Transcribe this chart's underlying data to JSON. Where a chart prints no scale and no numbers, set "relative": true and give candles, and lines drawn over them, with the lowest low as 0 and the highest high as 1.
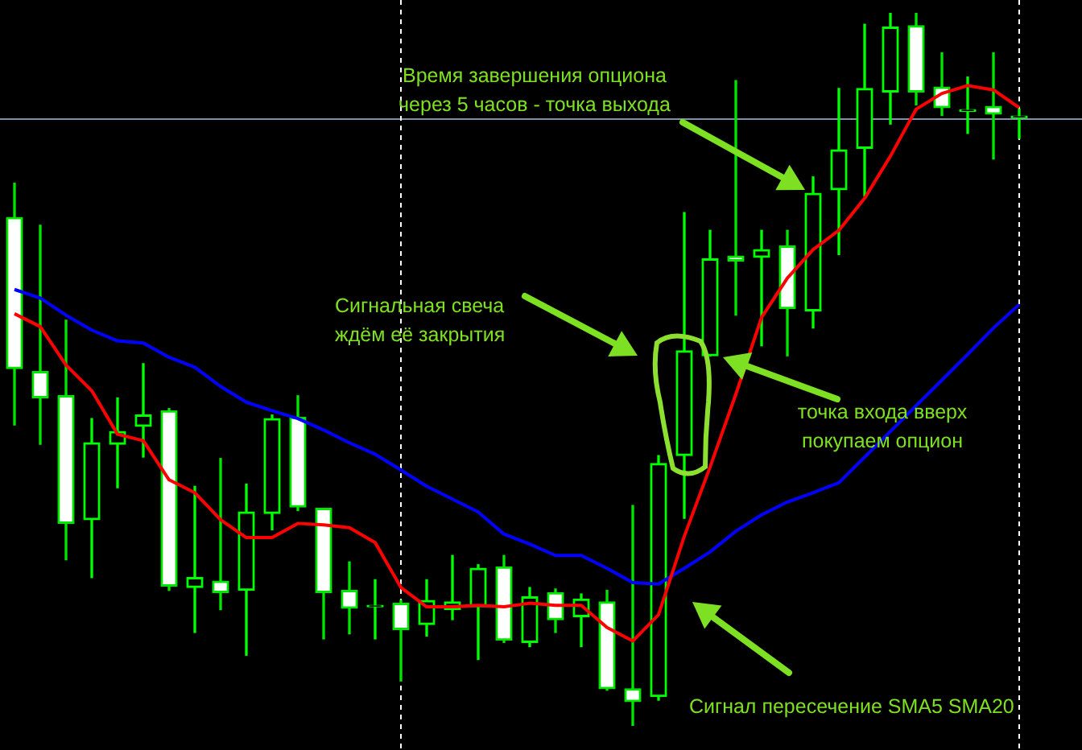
{
  "chart_data": {
    "type": "candlestick",
    "relative": true,
    "categories": [
      null,
      null,
      null,
      null,
      null,
      null,
      null,
      null,
      null,
      null,
      null,
      null,
      null,
      null,
      null,
      null,
      null,
      null,
      null,
      null,
      null,
      null,
      null,
      null,
      null,
      null,
      null,
      null,
      null,
      null,
      null,
      null,
      null,
      null,
      null,
      null,
      null,
      null,
      null,
      null
    ],
    "colors": [
      "#00e600",
      "#00e600",
      "#00e600",
      "#00ff00",
      "#00ff00",
      "#00ff00",
      "#00e600",
      "#00ff00",
      "#00e600",
      "#00ff00",
      "#00ff00",
      "#00e600",
      "#00e600",
      "#00e600",
      "#00ff00",
      "#00e600",
      "#00ff00",
      "#00ff00",
      "#00ff00",
      "#00e600",
      "#00ff00",
      "#00e600",
      "#00ff00",
      "#00e600",
      "#00e600",
      "#00ff00",
      "#00ff00",
      "#00ff00",
      "#00e600",
      "#00ff00",
      "#00e600",
      "#00ff00",
      "#00ff00",
      "#00ff00",
      "#00ff00",
      "#00e600",
      "#00e600",
      "#00ff00",
      "#00e600",
      "#00ff00"
    ],
    "ohlc": [
      [
        0.713,
        0.761,
        0.422,
        0.501
      ],
      [
        0.497,
        0.702,
        0.395,
        0.46
      ],
      [
        0.463,
        0.569,
        0.233,
        0.284
      ],
      [
        0.289,
        0.431,
        0.208,
        0.397
      ],
      [
        0.395,
        0.46,
        0.334,
        0.413
      ],
      [
        0.42,
        0.508,
        0.377,
        0.436
      ],
      [
        0.442,
        0.445,
        0.19,
        0.196
      ],
      [
        0.194,
        0.336,
        0.131,
        0.208
      ],
      [
        0.203,
        0.375,
        0.163,
        0.187
      ],
      [
        0.19,
        0.339,
        0.099,
        0.3
      ],
      [
        0.298,
        0.436,
        0.275,
        0.431
      ],
      [
        0.433,
        0.463,
        0.302,
        0.307
      ],
      [
        0.305,
        0.305,
        0.122,
        0.187
      ],
      [
        0.19,
        0.23,
        0.129,
        0.165
      ],
      [
        0.167,
        0.205,
        0.122,
        0.167
      ],
      [
        0.172,
        0.176,
        0.063,
        0.135
      ],
      [
        0.142,
        0.205,
        0.126,
        0.176
      ],
      [
        0.163,
        0.239,
        0.149,
        0.174
      ],
      [
        0.167,
        0.226,
        0.093,
        0.221
      ],
      [
        0.223,
        0.239,
        0.117,
        0.12
      ],
      [
        0.117,
        0.194,
        0.111,
        0.181
      ],
      [
        0.187,
        0.192,
        0.131,
        0.149
      ],
      [
        0.153,
        0.185,
        0.111,
        0.178
      ],
      [
        0.174,
        0.19,
        0.05,
        0.052
      ],
      [
        0.052,
        0.309,
        0,
        0.034
      ],
      [
        0.041,
        0.379,
        0.036,
        0.368
      ],
      [
        0.379,
        0.72,
        0.291,
        0.526
      ],
      [
        0.519,
        0.695,
        0.519,
        0.655
      ],
      [
        0.659,
        0.905,
        0.576,
        0.652
      ],
      [
        0.657,
        0.695,
        0.533,
        0.668
      ],
      [
        0.673,
        0.695,
        0.519,
        0.585
      ],
      [
        0.582,
        0.77,
        0.558,
        0.747
      ],
      [
        0.752,
        0.894,
        0.661,
        0.808
      ],
      [
        0.81,
        0.984,
        0.743,
        0.894
      ],
      [
        0.889,
        1,
        0.844,
        0.98
      ],
      [
        0.982,
        1,
        0.871,
        0.889
      ],
      [
        0.896,
        0.944,
        0.856,
        0.867
      ],
      [
        0.862,
        0.91,
        0.831,
        0.862
      ],
      [
        0.869,
        0.944,
        0.795,
        0.858
      ],
      [
        0.853,
        0.865,
        0.824,
        0.853
      ]
    ],
    "series": [
      {
        "type": "line",
        "color": "#ff0000",
        "values": [
          0.578,
          0.56,
          0.506,
          0.47,
          0.409,
          0.4,
          0.345,
          0.327,
          0.289,
          0.264,
          0.264,
          0.284,
          0.282,
          0.278,
          0.257,
          0.194,
          0.167,
          0.167,
          0.169,
          0.167,
          0.172,
          0.169,
          0.169,
          0.138,
          0.119,
          0.156,
          0.266,
          0.363,
          0.465,
          0.573,
          0.628,
          0.668,
          0.695,
          0.74,
          0.799,
          0.865,
          0.887,
          0.898,
          0.892,
          0.867
        ]
      },
      {
        "type": "line",
        "color": "#0000ff",
        "values": [
          0.612,
          0.6,
          0.576,
          0.555,
          0.54,
          0.537,
          0.517,
          0.503,
          0.476,
          0.454,
          0.442,
          0.431,
          0.415,
          0.397,
          0.381,
          0.359,
          0.336,
          0.318,
          0.3,
          0.269,
          0.255,
          0.239,
          0.239,
          0.221,
          0.201,
          0.199,
          0.221,
          0.244,
          0.273,
          0.296,
          0.314,
          0.327,
          0.341,
          0.377,
          0.413,
          0.449,
          0.485,
          0.521,
          0.558,
          0.591
        ]
      }
    ],
    "ref_lines": [
      {
        "axis": "y",
        "value": 0.851,
        "color": "#8090a8"
      }
    ],
    "annotations": [
      "Время завершения опциона\nчерез 5 часов - точка выхода",
      "Сигнальная свеча\nждём её закрытия",
      "точка входа вверх\nпокупаем опцион",
      "Сигнал пересечение SMA5 SMA20"
    ]
  }
}
